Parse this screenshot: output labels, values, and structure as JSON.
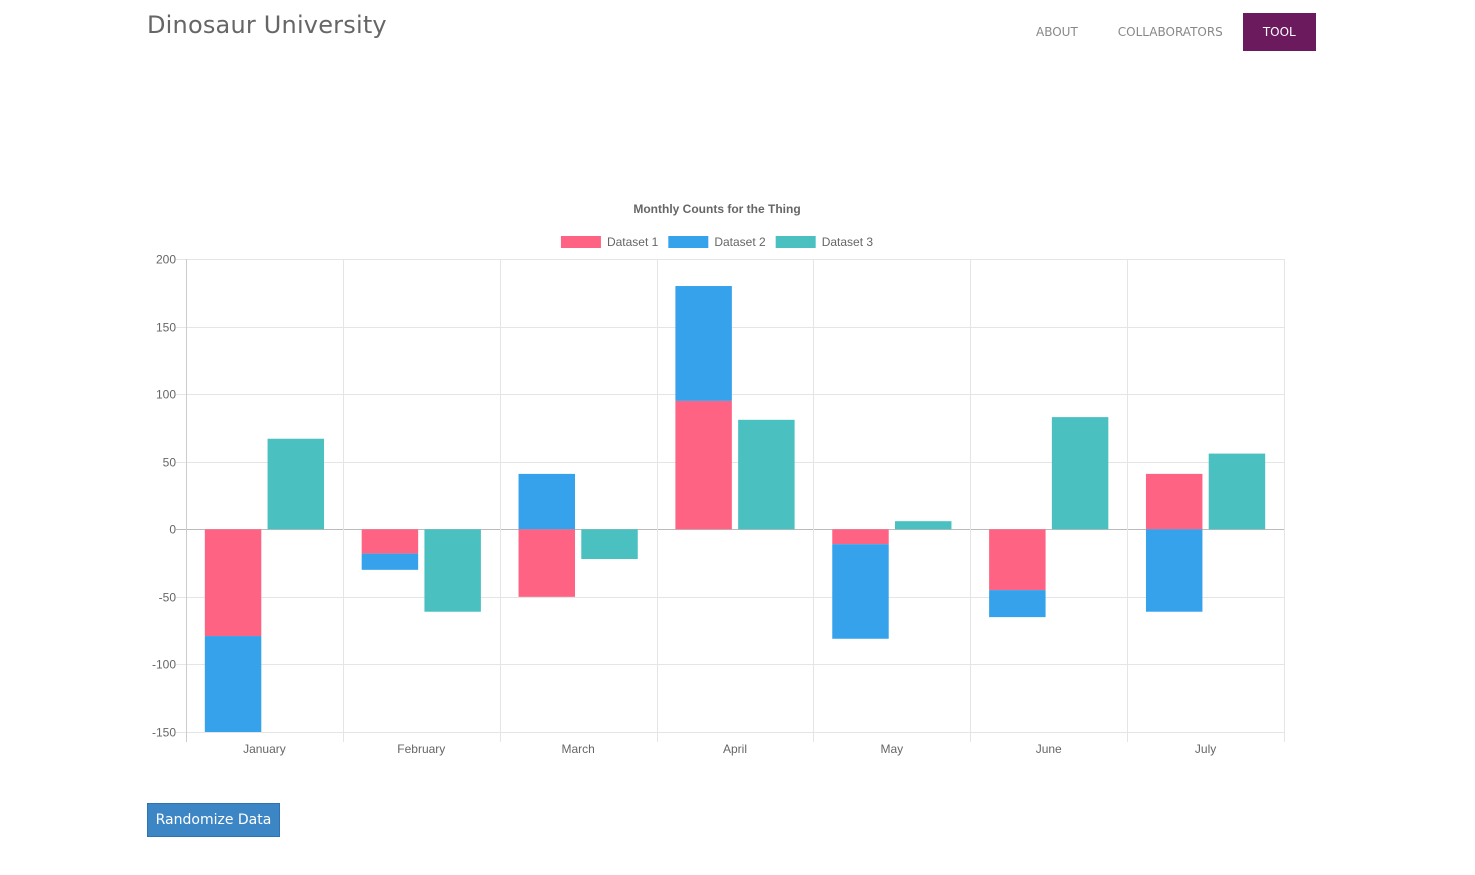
{
  "brand": "Dinosaur University",
  "nav": {
    "items": [
      {
        "label": "About",
        "active": false
      },
      {
        "label": "Collaborators",
        "active": false
      },
      {
        "label": "Tool",
        "active": true
      }
    ]
  },
  "button": {
    "label": "Randomize Data"
  },
  "colors": {
    "dataset1": "#ff6384",
    "dataset2": "#36a2eb",
    "dataset3": "#4bc0c0",
    "nav_active": "#6b1a5e",
    "button": "#3d86c6"
  },
  "chart_data": {
    "type": "bar",
    "title": "Monthly Counts for the Thing",
    "categories": [
      "January",
      "February",
      "March",
      "April",
      "May",
      "June",
      "July"
    ],
    "ylim": [
      -150,
      200
    ],
    "yticks": [
      200,
      150,
      100,
      50,
      0,
      -50,
      -100,
      -150
    ],
    "grid": true,
    "legend": "top",
    "stacked_groups": [
      [
        "Dataset 1",
        "Dataset 2"
      ],
      [
        "Dataset 3"
      ]
    ],
    "series": [
      {
        "name": "Dataset 1",
        "color": "#ff6384",
        "values": [
          -79,
          -18,
          -50,
          95,
          -11,
          -45,
          41
        ]
      },
      {
        "name": "Dataset 2",
        "color": "#36a2eb",
        "values": [
          -71,
          -12,
          41,
          85,
          -70,
          -20,
          -61
        ]
      },
      {
        "name": "Dataset 3",
        "color": "#4bc0c0",
        "values": [
          67,
          -61,
          -22,
          81,
          6,
          83,
          56
        ]
      }
    ]
  }
}
